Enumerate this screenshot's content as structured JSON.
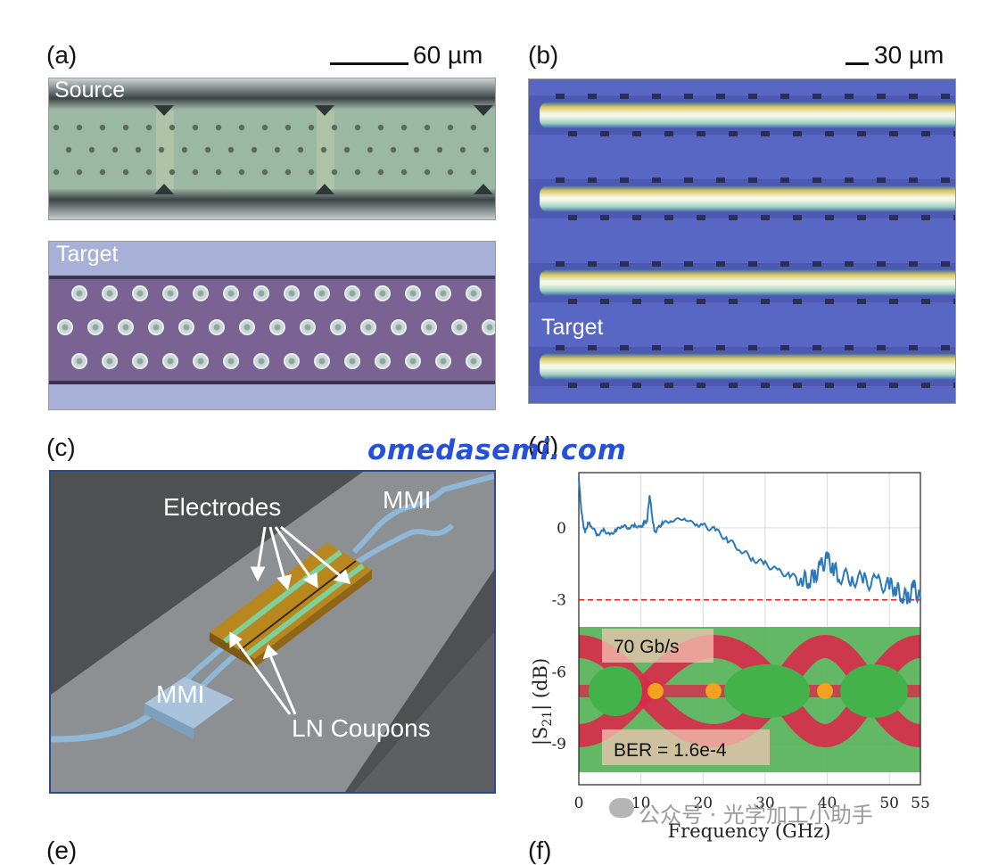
{
  "panel_a": {
    "label": "(a)",
    "scale_text": "60 µm",
    "source_label": "Source",
    "target_label": "Target"
  },
  "panel_b": {
    "label": "(b)",
    "scale_text": "30 µm",
    "target_label": "Target"
  },
  "panel_c": {
    "label": "(c)",
    "electrodes_label": "Electrodes",
    "mmi_top_label": "MMI",
    "mmi_bottom_label": "MMI",
    "coupons_label": "LN Coupons"
  },
  "panel_d": {
    "label": "(d)",
    "eye_rate_label": "70 Gb/s",
    "eye_ber_label": "BER = 1.6e-4"
  },
  "bottom_labels": {
    "e": "(e)",
    "f": "(f)"
  },
  "watermark": {
    "site": "omedasemi.com",
    "wechat": "公众号 · 光学加工小助手"
  },
  "colors": {
    "trace": "#2b78b8",
    "threshold": "#d32020",
    "watermark": "#2750d8"
  },
  "chart_data": {
    "type": "line",
    "xlabel": "Frequency (GHz)",
    "ylabel": "|S21| (dB)",
    "ylabel_main": "|S",
    "ylabel_sub": "21",
    "ylabel_tail": "| (dB)",
    "xlim": [
      0,
      55
    ],
    "ylim": [
      -10.7,
      2.3
    ],
    "xticks": [
      0,
      10,
      20,
      30,
      40,
      50,
      55
    ],
    "yticks": [
      0,
      -3,
      -6,
      -9
    ],
    "grid": true,
    "threshold_db": -3,
    "series": [
      {
        "x": [
          0,
          0.3,
          0.6,
          1,
          1.5,
          2,
          3,
          4,
          5,
          6,
          7,
          8,
          9,
          10,
          10.5,
          11,
          11.4,
          11.8,
          12.2,
          12.8,
          13.5,
          15,
          17,
          19,
          20,
          22,
          24,
          26,
          28,
          30,
          32,
          34,
          36,
          37,
          38,
          39,
          40,
          41,
          42,
          44,
          46,
          48,
          50,
          51,
          52,
          53,
          54,
          55
        ],
        "y": [
          2.1,
          1.0,
          0.3,
          -0.2,
          0.2,
          0.1,
          -0.3,
          -0.1,
          -0.3,
          -0.1,
          0.1,
          0.0,
          0.1,
          0.0,
          0.2,
          0.3,
          1.4,
          0.5,
          -0.2,
          0.0,
          0.2,
          0.3,
          0.4,
          0.1,
          0.1,
          -0.1,
          -0.5,
          -0.9,
          -1.3,
          -1.5,
          -1.8,
          -2.0,
          -2.1,
          -2.2,
          -2.0,
          -1.6,
          -1.3,
          -1.7,
          -2.0,
          -2.1,
          -2.2,
          -2.3,
          -2.4,
          -2.5,
          -2.8,
          -2.9,
          -2.5,
          -3.0
        ]
      }
    ]
  }
}
